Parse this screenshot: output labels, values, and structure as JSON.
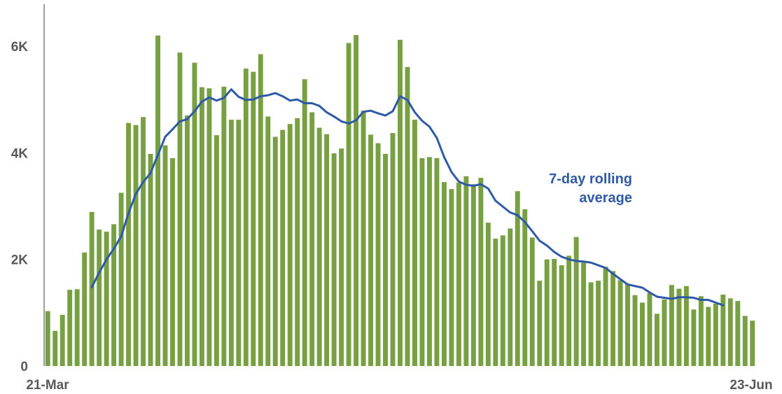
{
  "chart_data": {
    "type": "bar",
    "x_start_label": "21-Mar",
    "x_end_label": "23-Jun",
    "ylim": [
      0,
      7000
    ],
    "yticks": [
      {
        "value": 0,
        "label": "0"
      },
      {
        "value": 2000,
        "label": "2K"
      },
      {
        "value": 4000,
        "label": "4K"
      },
      {
        "value": 6000,
        "label": "6K"
      }
    ],
    "grid": false,
    "colors": {
      "bars": "#77a042",
      "line": "#2e5aa8",
      "axis": "#7f7f7f",
      "annotation": "#2e5aa8"
    },
    "annotation": {
      "line1": "7-day rolling",
      "line2": "average"
    },
    "series": [
      {
        "kind": "bar",
        "values": [
          1030,
          660,
          960,
          1430,
          1440,
          2130,
          2890,
          2560,
          2520,
          2660,
          3250,
          4560,
          4520,
          4670,
          3980,
          6200,
          4140,
          3900,
          5880,
          4700,
          5690,
          5230,
          5210,
          4330,
          5240,
          4620,
          4620,
          5580,
          5520,
          5850,
          4680,
          4300,
          4430,
          4540,
          4650,
          5380,
          4760,
          4470,
          4350,
          3990,
          4080,
          6060,
          6210,
          4790,
          4340,
          4180,
          3980,
          4370,
          6120,
          5610,
          4620,
          3900,
          3920,
          3900,
          3450,
          3320,
          3440,
          3560,
          3410,
          3530,
          2690,
          2390,
          2450,
          2580,
          3280,
          2940,
          2410,
          1600,
          2000,
          2010,
          1890,
          2070,
          2420,
          1940,
          1570,
          1600,
          1860,
          1780,
          1610,
          1540,
          1330,
          1190,
          1370,
          980,
          1250,
          1520,
          1450,
          1500,
          1060,
          1310,
          1110,
          1170,
          1340,
          1270,
          1220,
          940,
          850
        ]
      },
      {
        "kind": "line",
        "start_index": 6,
        "values": [
          1480,
          1750,
          2000,
          2200,
          2430,
          2870,
          3230,
          3450,
          3620,
          3960,
          4300,
          4440,
          4590,
          4630,
          4780,
          4960,
          5040,
          4980,
          5030,
          5190,
          5050,
          4990,
          5000,
          5060,
          5080,
          5120,
          5060,
          4980,
          5000,
          4930,
          4930,
          4880,
          4760,
          4680,
          4590,
          4550,
          4610,
          4770,
          4790,
          4740,
          4700,
          4780,
          5060,
          4990,
          4760,
          4600,
          4490,
          4280,
          3920,
          3640,
          3460,
          3400,
          3380,
          3410,
          3330,
          3100,
          2990,
          2880,
          2830,
          2700,
          2530,
          2350,
          2260,
          2140,
          2050,
          2000,
          1970,
          1960,
          1940,
          1890,
          1840,
          1730,
          1630,
          1530,
          1500,
          1470,
          1380,
          1300,
          1280,
          1260,
          1290,
          1290,
          1280,
          1240,
          1240,
          1190,
          1140
        ]
      }
    ]
  }
}
